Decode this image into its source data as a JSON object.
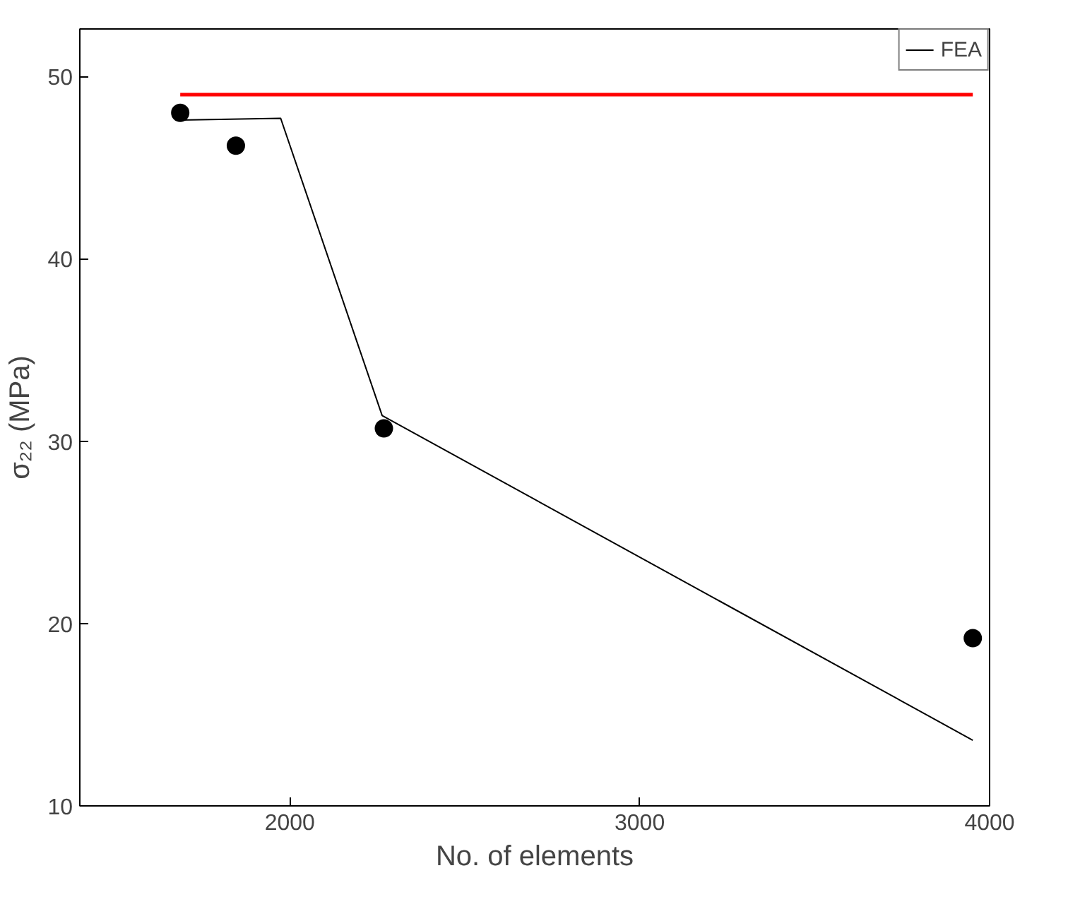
{
  "chart_data": {
    "type": "line",
    "xlabel": "No. of elements",
    "ylabel": "σ₂₂ (MPa)",
    "xlim": [
      1400,
      4000
    ],
    "ylim": [
      10,
      52.6
    ],
    "xticks": [
      2000,
      3000,
      4000
    ],
    "yticks": [
      10,
      20,
      30,
      40,
      50
    ],
    "grid": false,
    "legend": "top right",
    "series": [
      {
        "type": "scatter",
        "marker": "circle",
        "color": "#000000",
        "x": [
          1687,
          1846,
          2269,
          3952
        ],
        "values": [
          48.0,
          46.2,
          30.7,
          19.2
        ]
      },
      {
        "name": "FEA",
        "color": "#000000",
        "x": [
          1687,
          1974,
          2264,
          3952
        ],
        "values": [
          47.6,
          47.7,
          31.4,
          13.6
        ]
      },
      {
        "color": "#ff0000",
        "x": [
          1687,
          3952
        ],
        "values": [
          49.0,
          49.0
        ]
      }
    ]
  }
}
